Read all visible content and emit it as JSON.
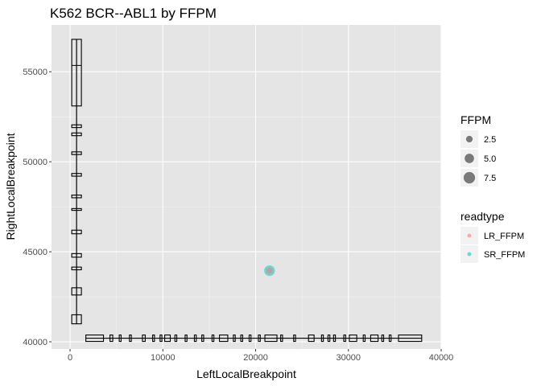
{
  "chart_data": {
    "type": "scatter",
    "title": "K562 BCR--ABL1 by FFPM",
    "xlabel": "LeftLocalBreakpoint",
    "ylabel": "RightLocalBreakpoint",
    "xlim": [
      -2000,
      40000
    ],
    "ylim": [
      39600,
      57600
    ],
    "x_ticks": [
      0,
      10000,
      20000,
      30000,
      40000
    ],
    "x_tick_labels": [
      "0",
      "10000",
      "20000",
      "30000",
      "40000"
    ],
    "y_ticks": [
      40000,
      45000,
      50000,
      55000
    ],
    "y_tick_labels": [
      "40000",
      "45000",
      "50000",
      "55000"
    ],
    "grid": true,
    "panel_background": "#e5e5e5",
    "points": [
      {
        "x": 21500,
        "y": 43950,
        "ffpm": 2.5,
        "readtype": "LR_FFPM"
      },
      {
        "x": 21500,
        "y": 43950,
        "ffpm": 6.5,
        "readtype": "SR_FFPM"
      }
    ],
    "exon_segments_left": [
      {
        "start": 1700,
        "end": 3600
      },
      {
        "start": 4300,
        "end": 4600
      },
      {
        "start": 5300,
        "end": 5500
      },
      {
        "start": 6400,
        "end": 6600
      },
      {
        "start": 7800,
        "end": 8100
      },
      {
        "start": 8900,
        "end": 9100
      },
      {
        "start": 9700,
        "end": 9900
      },
      {
        "start": 10200,
        "end": 10800
      },
      {
        "start": 11300,
        "end": 11500
      },
      {
        "start": 12400,
        "end": 12600
      },
      {
        "start": 13400,
        "end": 13600
      },
      {
        "start": 14200,
        "end": 14400
      },
      {
        "start": 15300,
        "end": 15500
      },
      {
        "start": 16100,
        "end": 17000
      },
      {
        "start": 17600,
        "end": 17800
      },
      {
        "start": 18400,
        "end": 18600
      },
      {
        "start": 19300,
        "end": 19500
      },
      {
        "start": 20300,
        "end": 20500
      },
      {
        "start": 21000,
        "end": 22300
      },
      {
        "start": 22700,
        "end": 22900
      },
      {
        "start": 24100,
        "end": 24300
      },
      {
        "start": 25700,
        "end": 26300
      },
      {
        "start": 27100,
        "end": 27300
      },
      {
        "start": 27800,
        "end": 28000
      },
      {
        "start": 28400,
        "end": 28600
      },
      {
        "start": 29500,
        "end": 29700
      },
      {
        "start": 30100,
        "end": 30900
      },
      {
        "start": 31600,
        "end": 31800
      },
      {
        "start": 32400,
        "end": 33200
      },
      {
        "start": 33600,
        "end": 33800
      },
      {
        "start": 34400,
        "end": 34600
      },
      {
        "start": 35400,
        "end": 37900
      }
    ],
    "exon_segments_right": [
      {
        "start": 53100,
        "end": 56800
      },
      {
        "start": 51900,
        "end": 52050
      },
      {
        "start": 51450,
        "end": 51600
      },
      {
        "start": 50400,
        "end": 50550
      },
      {
        "start": 49200,
        "end": 49350
      },
      {
        "start": 48000,
        "end": 48150
      },
      {
        "start": 47300,
        "end": 47400
      },
      {
        "start": 46000,
        "end": 46200
      },
      {
        "start": 44700,
        "end": 44900
      },
      {
        "start": 44000,
        "end": 44150
      },
      {
        "start": 42600,
        "end": 43000
      },
      {
        "start": 41000,
        "end": 41500
      }
    ],
    "legend": {
      "placement": "right",
      "size_title": "FFPM",
      "size_entries": [
        {
          "label": "2.5",
          "value": 2.5
        },
        {
          "label": "5.0",
          "value": 5.0
        },
        {
          "label": "7.5",
          "value": 7.5
        }
      ],
      "color_title": "readtype",
      "color_entries": [
        {
          "label": "LR_FFPM",
          "color": "#f8766d"
        },
        {
          "label": "SR_FFPM",
          "color": "#00bfc4"
        }
      ]
    }
  }
}
